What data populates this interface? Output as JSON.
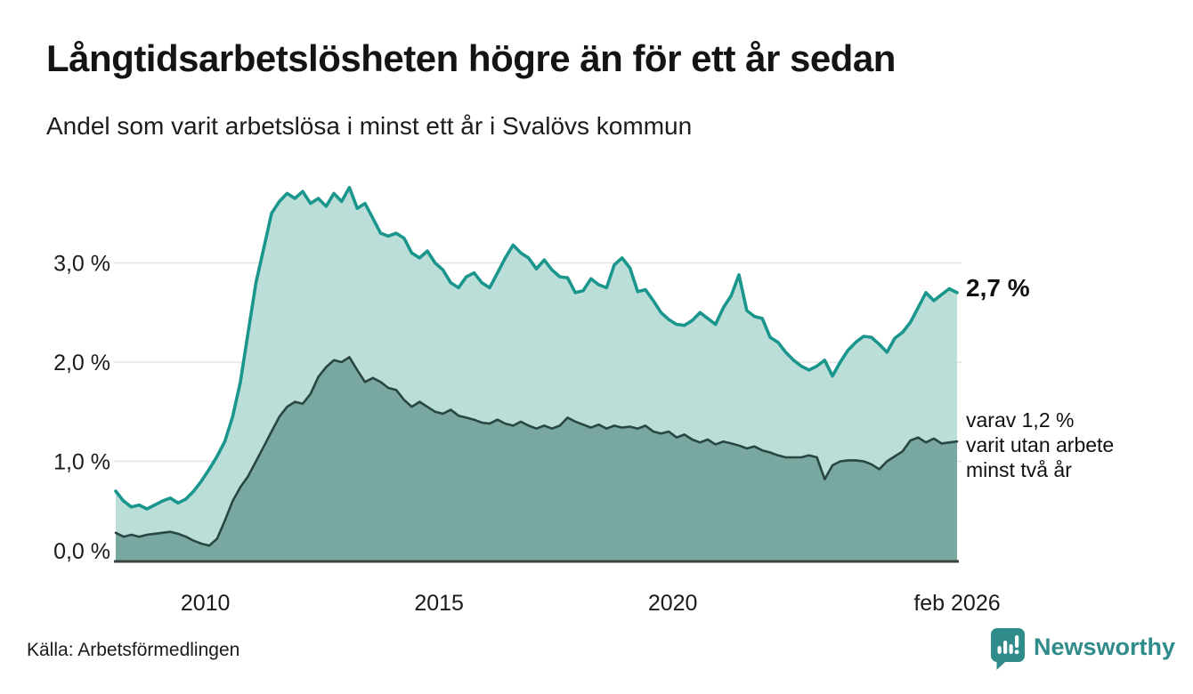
{
  "title": "Långtidsarbetslösheten högre än för ett år sedan",
  "subtitle": "Andel som varit arbetslösa i minst ett år i Svalövs kommun",
  "source": "Källa: Arbetsförmedlingen",
  "branding": {
    "name": "Newsworthy",
    "color": "#2f8c8a"
  },
  "annotations": {
    "latest_total_label": "2,7 %",
    "secondary_label_lines": [
      "varav 1,2 %",
      "varit utan arbete",
      "minst två år"
    ]
  },
  "colors": {
    "grid": "#e4e4e4",
    "baseline": "#38423f",
    "tick_text": "#1a1a1a",
    "total_line": "#1a968c",
    "total_fill": "#b5dbd5",
    "two_year_line": "#2a4643",
    "two_year_fill": "#74a49d"
  },
  "chart_data": {
    "type": "area",
    "title": "Långtidsarbetslösheten högre än för ett år sedan",
    "subtitle": "Andel som varit arbetslösa i minst ett år i Svalövs kommun",
    "unit": "%",
    "x_start": 2008.083,
    "x_end": 2026.083,
    "points_per_year": 6,
    "ylim": [
      0,
      3.95
    ],
    "grid": "horizontal",
    "x_ticks": [
      {
        "value": 2010.0,
        "label": "2010"
      },
      {
        "value": 2015.0,
        "label": "2015"
      },
      {
        "value": 2020.0,
        "label": "2020"
      },
      {
        "value": 2026.083,
        "label": "feb 2026"
      }
    ],
    "y_ticks": [
      {
        "value": 0,
        "label": "0,0 %"
      },
      {
        "value": 1,
        "label": "1,0 %"
      },
      {
        "value": 2,
        "label": "2,0 %"
      },
      {
        "value": 3,
        "label": "3,0 %"
      }
    ],
    "series": [
      {
        "name": "arbetslösa minst ett år (totalt)",
        "latest_value": 2.7,
        "values": [
          0.7,
          0.6,
          0.54,
          0.56,
          0.52,
          0.56,
          0.6,
          0.63,
          0.58,
          0.62,
          0.7,
          0.8,
          0.92,
          1.05,
          1.2,
          1.45,
          1.8,
          2.3,
          2.8,
          3.15,
          3.5,
          3.62,
          3.7,
          3.65,
          3.72,
          3.6,
          3.65,
          3.57,
          3.7,
          3.62,
          3.76,
          3.55,
          3.6,
          3.45,
          3.3,
          3.27,
          3.3,
          3.25,
          3.1,
          3.05,
          3.12,
          3.0,
          2.93,
          2.8,
          2.75,
          2.86,
          2.9,
          2.8,
          2.75,
          2.9,
          3.05,
          3.18,
          3.1,
          3.05,
          2.94,
          3.03,
          2.93,
          2.86,
          2.85,
          2.7,
          2.72,
          2.84,
          2.78,
          2.75,
          2.98,
          3.05,
          2.95,
          2.71,
          2.73,
          2.62,
          2.5,
          2.43,
          2.38,
          2.37,
          2.42,
          2.5,
          2.44,
          2.38,
          2.55,
          2.67,
          2.88,
          2.52,
          2.46,
          2.44,
          2.25,
          2.2,
          2.1,
          2.02,
          1.96,
          1.92,
          1.96,
          2.02,
          1.86,
          2.0,
          2.12,
          2.2,
          2.26,
          2.25,
          2.18,
          2.1,
          2.24,
          2.3,
          2.4,
          2.55,
          2.7,
          2.62,
          2.68,
          2.74,
          2.7
        ]
      },
      {
        "name": "varav utan arbete minst två år",
        "latest_value": 1.2,
        "values": [
          0.28,
          0.24,
          0.26,
          0.24,
          0.26,
          0.27,
          0.28,
          0.29,
          0.27,
          0.24,
          0.2,
          0.17,
          0.15,
          0.22,
          0.4,
          0.6,
          0.74,
          0.85,
          1.0,
          1.15,
          1.3,
          1.45,
          1.55,
          1.6,
          1.58,
          1.68,
          1.85,
          1.95,
          2.02,
          2.0,
          2.05,
          1.92,
          1.8,
          1.84,
          1.8,
          1.74,
          1.72,
          1.62,
          1.55,
          1.6,
          1.55,
          1.5,
          1.48,
          1.52,
          1.46,
          1.44,
          1.42,
          1.39,
          1.38,
          1.42,
          1.38,
          1.36,
          1.4,
          1.36,
          1.33,
          1.36,
          1.33,
          1.36,
          1.44,
          1.4,
          1.37,
          1.34,
          1.37,
          1.33,
          1.36,
          1.34,
          1.35,
          1.33,
          1.36,
          1.3,
          1.28,
          1.3,
          1.24,
          1.27,
          1.22,
          1.19,
          1.22,
          1.17,
          1.2,
          1.18,
          1.16,
          1.13,
          1.15,
          1.11,
          1.09,
          1.06,
          1.04,
          1.04,
          1.04,
          1.06,
          1.04,
          0.82,
          0.96,
          1.0,
          1.01,
          1.01,
          1.0,
          0.97,
          0.92,
          1.0,
          1.05,
          1.1,
          1.21,
          1.24,
          1.19,
          1.23,
          1.18,
          1.19,
          1.2
        ]
      }
    ]
  }
}
